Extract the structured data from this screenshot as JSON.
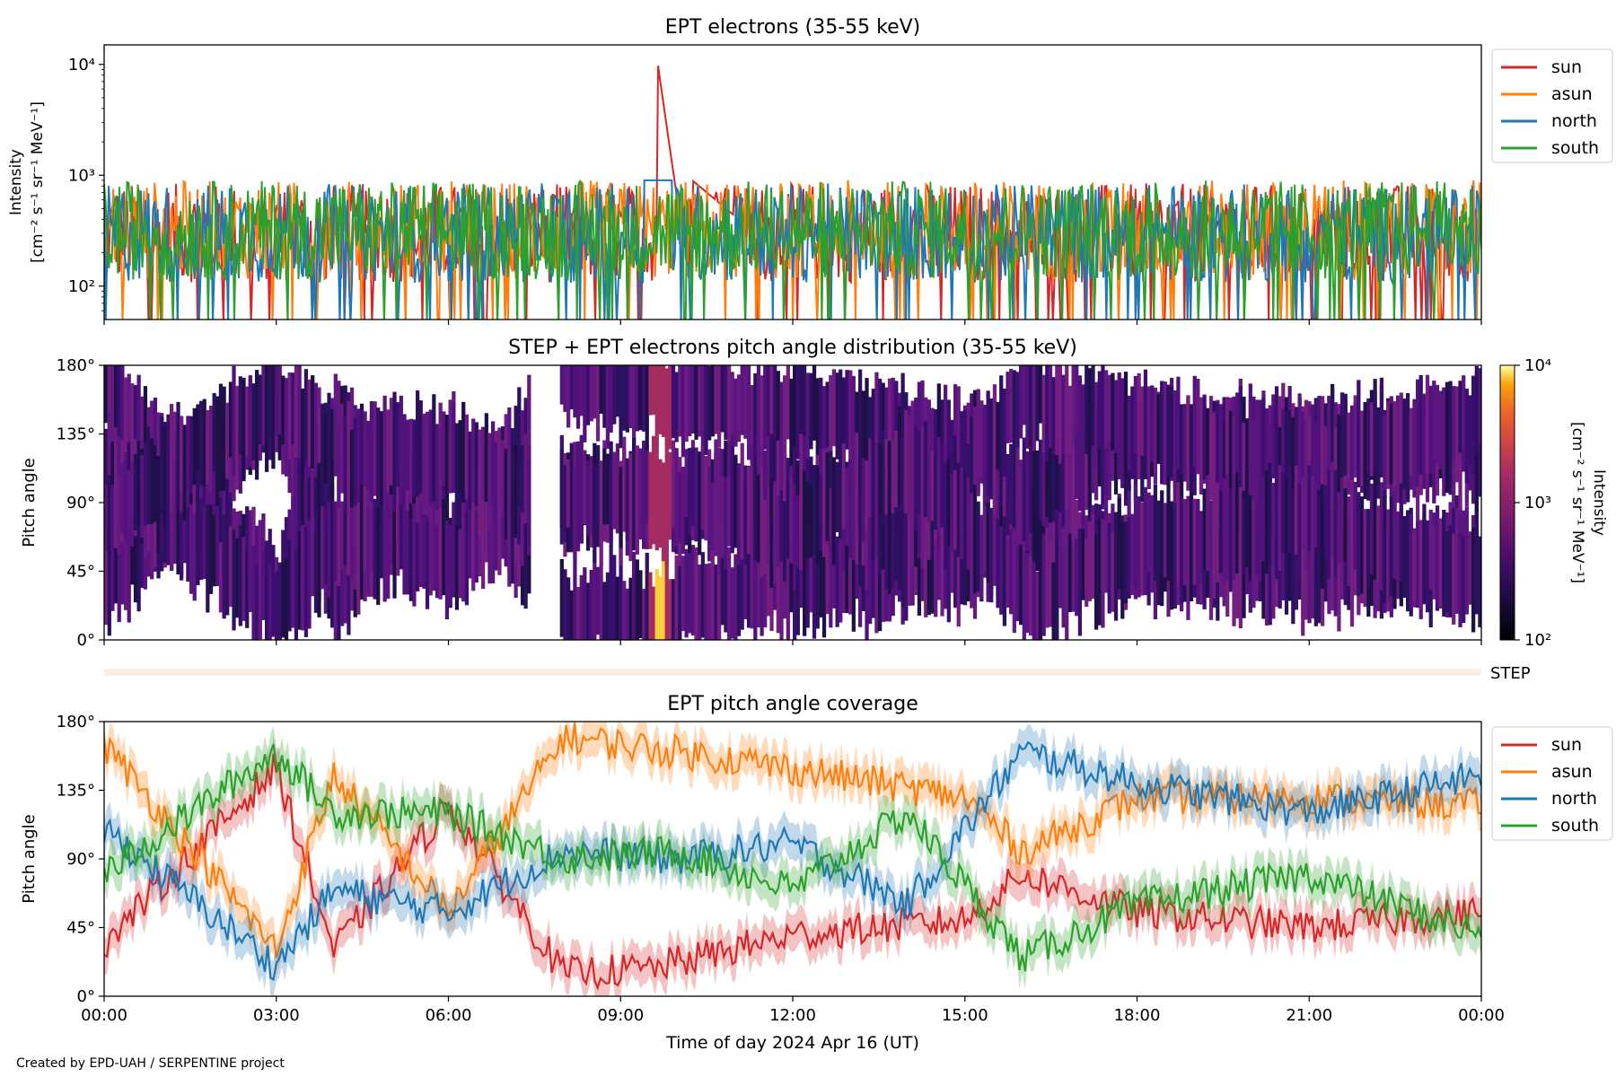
{
  "figure": {
    "credit": "Created by EPD-UAH / SERPENTINE project",
    "xlabel": "Time of day 2024 Apr 16 (UT)",
    "xticks": [
      "00:00",
      "03:00",
      "06:00",
      "09:00",
      "12:00",
      "15:00",
      "18:00",
      "21:00",
      "00:00"
    ]
  },
  "chart_data": [
    {
      "type": "line",
      "title": "EPT electrons (35-55 keV)",
      "ylabel": [
        "Intensity",
        "[cm⁻² s⁻¹ sr⁻¹ MeV⁻¹]"
      ],
      "yscale": "log",
      "ylim": [
        50,
        15000
      ],
      "yticks": [
        {
          "v": 100,
          "label": "10²"
        },
        {
          "v": 1000,
          "label": "10³"
        },
        {
          "v": 10000,
          "label": "10⁴"
        }
      ],
      "xlim_hours": [
        0,
        24
      ],
      "legend": "outside-right",
      "series": [
        {
          "name": "sun",
          "color": "#d62728",
          "baseline": 300,
          "peak": {
            "t": 9.65,
            "value": 10000
          }
        },
        {
          "name": "asun",
          "color": "#ff7f0e",
          "baseline": 320
        },
        {
          "name": "north",
          "color": "#1f77b4",
          "baseline": 300
        },
        {
          "name": "south",
          "color": "#2ca02c",
          "baseline": 320
        }
      ]
    },
    {
      "type": "heatmap",
      "title": "STEP + EPT electrons pitch angle distribution (35-55 keV)",
      "ylabel": "Pitch angle",
      "ylim": [
        0,
        180
      ],
      "yticks": [
        "0°",
        "45°",
        "90°",
        "135°",
        "180°"
      ],
      "colorbar": {
        "label": [
          "Intensity",
          "[cm⁻² s⁻¹ sr⁻¹ MeV⁻¹]"
        ],
        "scale": "log",
        "range": [
          100,
          10000
        ],
        "colormap": "inferno",
        "ticks": [
          "10²",
          "10³",
          "10⁴"
        ]
      },
      "step_label": "STEP"
    },
    {
      "type": "line",
      "title": "EPT pitch angle coverage",
      "ylabel": "Pitch angle",
      "ylim": [
        0,
        180
      ],
      "yticks": [
        "0°",
        "45°",
        "90°",
        "135°",
        "180°"
      ],
      "legend": "outside-right",
      "series": [
        {
          "name": "sun",
          "color": "#d62728",
          "points": [
            [
              0,
              35
            ],
            [
              3,
              150
            ],
            [
              4,
              30
            ],
            [
              6,
              125
            ],
            [
              8,
              15
            ],
            [
              9.5,
              18
            ],
            [
              12,
              40
            ],
            [
              15,
              50
            ],
            [
              16,
              80
            ],
            [
              18,
              55
            ],
            [
              21,
              45
            ],
            [
              24,
              55
            ]
          ]
        },
        {
          "name": "asun",
          "color": "#ff7f0e",
          "points": [
            [
              0,
              165
            ],
            [
              3,
              30
            ],
            [
              4,
              145
            ],
            [
              6,
              55
            ],
            [
              8,
              170
            ],
            [
              11,
              155
            ],
            [
              13.5,
              140
            ],
            [
              15,
              130
            ],
            [
              16,
              95
            ],
            [
              18,
              130
            ],
            [
              21,
              130
            ],
            [
              24,
              125
            ]
          ]
        },
        {
          "name": "north",
          "color": "#1f77b4",
          "points": [
            [
              0,
              110
            ],
            [
              3,
              20
            ],
            [
              4,
              70
            ],
            [
              6,
              55
            ],
            [
              8,
              95
            ],
            [
              10,
              90
            ],
            [
              12,
              100
            ],
            [
              14,
              60
            ],
            [
              16,
              160
            ],
            [
              18,
              140
            ],
            [
              21,
              120
            ],
            [
              24,
              145
            ]
          ]
        },
        {
          "name": "south",
          "color": "#2ca02c",
          "points": [
            [
              0,
              80
            ],
            [
              3,
              160
            ],
            [
              4,
              120
            ],
            [
              6,
              120
            ],
            [
              8,
              90
            ],
            [
              10,
              95
            ],
            [
              12,
              70
            ],
            [
              14,
              120
            ],
            [
              16,
              25
            ],
            [
              18,
              60
            ],
            [
              21,
              80
            ],
            [
              24,
              40
            ]
          ]
        }
      ]
    }
  ]
}
